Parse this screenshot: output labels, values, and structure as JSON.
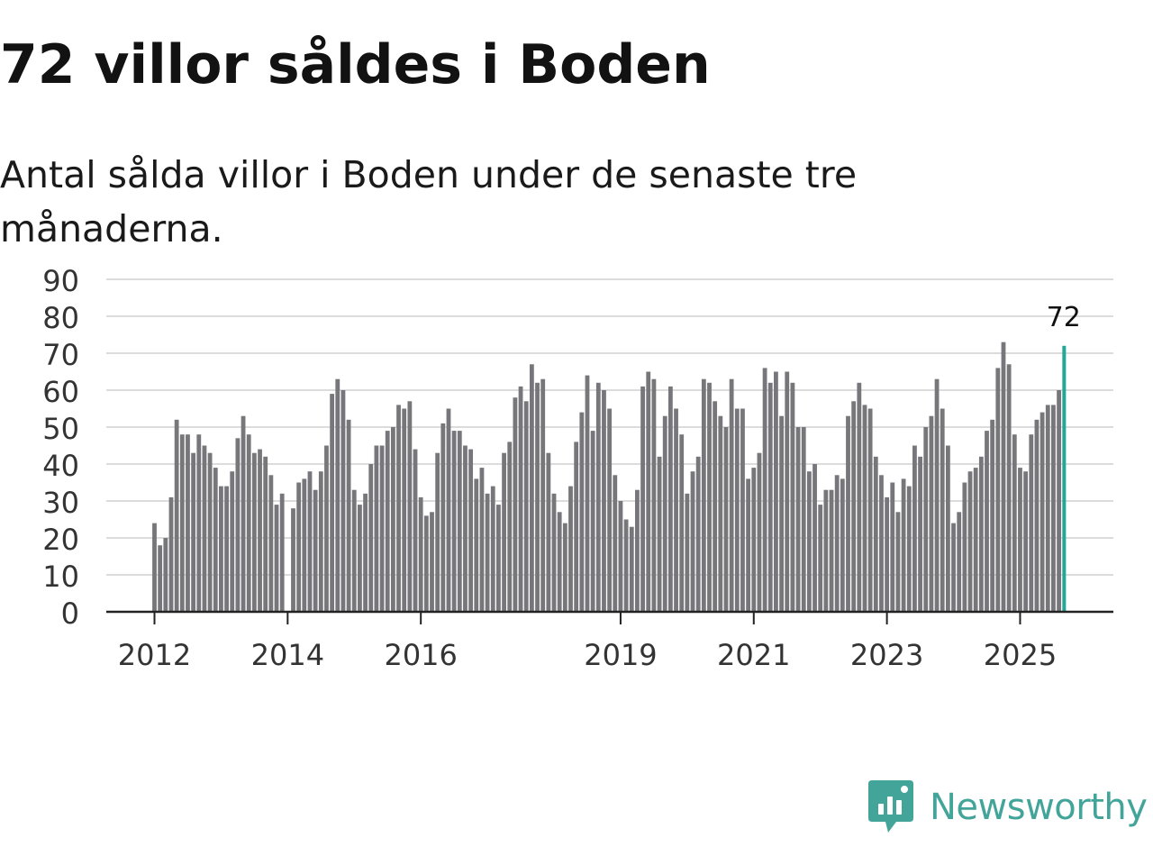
{
  "title": "72 villor såldes i Boden",
  "subtitle": "Antal sålda villor i Boden under de senaste tre månaderna.",
  "brand": {
    "name": "Newsworthy",
    "icon": "newsworthy-logo-icon",
    "color": "#43a49a"
  },
  "chart_data": {
    "type": "bar",
    "title": "72 villor såldes i Boden",
    "subtitle": "Antal sålda villor i Boden under de senaste tre månaderna.",
    "xlabel": "",
    "ylabel": "",
    "ylim": [
      0,
      90
    ],
    "yticks": [
      0,
      10,
      20,
      30,
      40,
      50,
      60,
      70,
      80,
      90
    ],
    "grid": true,
    "x_start": "2012-01",
    "frequency": "monthly",
    "xticks": [
      {
        "label": "2012",
        "index": 0
      },
      {
        "label": "2014",
        "index": 24
      },
      {
        "label": "2016",
        "index": 48
      },
      {
        "label": "2019",
        "index": 84
      },
      {
        "label": "2021",
        "index": 108
      },
      {
        "label": "2023",
        "index": 132
      },
      {
        "label": "2025",
        "index": 156
      }
    ],
    "bar_color": "#77767b",
    "highlight_color": "#21a898",
    "highlight_label": "72",
    "series": [
      {
        "name": "Antal sålda villor",
        "values": [
          24,
          18,
          20,
          31,
          52,
          48,
          48,
          43,
          48,
          45,
          43,
          39,
          34,
          34,
          38,
          47,
          53,
          48,
          43,
          44,
          42,
          37,
          29,
          32,
          0,
          28,
          35,
          36,
          38,
          33,
          38,
          45,
          59,
          63,
          60,
          52,
          33,
          29,
          32,
          40,
          45,
          45,
          49,
          50,
          56,
          55,
          57,
          44,
          31,
          26,
          27,
          43,
          51,
          55,
          49,
          49,
          45,
          44,
          36,
          39,
          32,
          34,
          29,
          43,
          46,
          58,
          61,
          57,
          67,
          62,
          63,
          43,
          32,
          27,
          24,
          34,
          46,
          54,
          64,
          49,
          62,
          60,
          55,
          37,
          30,
          25,
          23,
          33,
          61,
          65,
          63,
          42,
          53,
          61,
          55,
          48,
          32,
          38,
          42,
          63,
          62,
          57,
          53,
          50,
          63,
          55,
          55,
          36,
          39,
          43,
          66,
          62,
          65,
          53,
          65,
          62,
          50,
          50,
          38,
          40,
          29,
          33,
          33,
          37,
          36,
          53,
          57,
          62,
          56,
          55,
          42,
          37,
          31,
          35,
          27,
          36,
          34,
          45,
          42,
          50,
          53,
          63,
          55,
          45,
          24,
          27,
          35,
          38,
          39,
          42,
          49,
          52,
          66,
          73,
          67,
          48,
          39,
          38,
          48,
          52,
          54,
          56,
          56,
          60,
          72
        ]
      }
    ]
  }
}
